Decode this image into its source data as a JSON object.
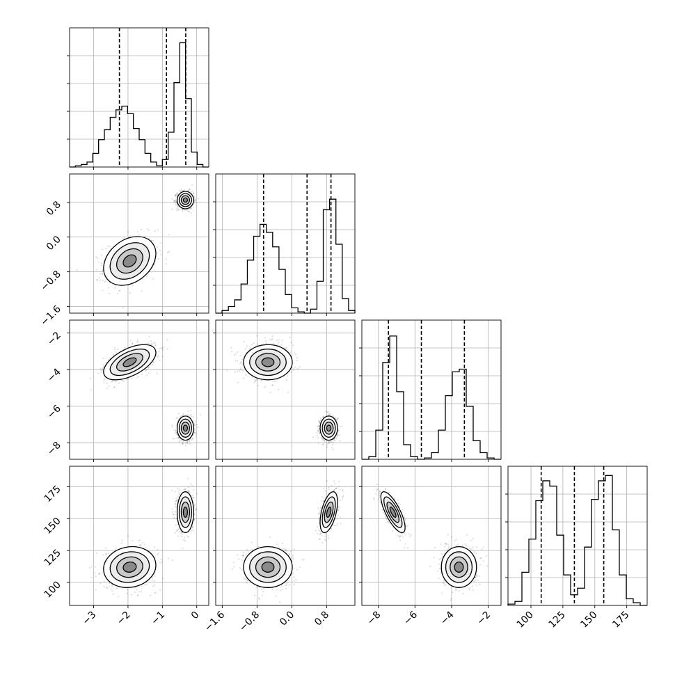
{
  "chart_data": {
    "type": "corner",
    "dimensions": 4,
    "parameters": [
      {
        "index": 0,
        "range": [
          -3.7,
          0.35
        ],
        "tick_values": [
          -3,
          -2,
          -1,
          0
        ],
        "tick_labels": [
          "−3",
          "−2",
          "−1",
          "0"
        ],
        "quantile_lines": [
          -2.25,
          -0.88,
          -0.32
        ],
        "modes": [
          {
            "center": -1.95,
            "sd": 0.38,
            "weight": 0.5
          },
          {
            "center": -0.33,
            "sd": 0.12,
            "weight": 0.5
          }
        ],
        "histogram": [
          0,
          0.01,
          0.02,
          0.04,
          0.11,
          0.22,
          0.3,
          0.4,
          0.46,
          0.49,
          0.43,
          0.31,
          0.22,
          0.11,
          0.04,
          0.01,
          0.06,
          0.28,
          0.68,
          1.0,
          0.55,
          0.12,
          0.02,
          0.0
        ],
        "hist_ylim": [
          0,
          1.12
        ]
      },
      {
        "index": 1,
        "range": [
          -1.75,
          1.45
        ],
        "tick_values": [
          -1.6,
          -0.8,
          0.0,
          0.8
        ],
        "tick_labels": [
          "−1.6",
          "−0.8",
          "0.0",
          "0.8"
        ],
        "quantile_lines": [
          -0.65,
          0.35,
          0.9
        ],
        "modes": [
          {
            "center": -0.55,
            "sd": 0.28,
            "weight": 0.5
          },
          {
            "center": 0.85,
            "sd": 0.1,
            "weight": 0.5
          }
        ],
        "histogram": [
          0,
          0.02,
          0.05,
          0.1,
          0.22,
          0.4,
          0.58,
          0.67,
          0.61,
          0.5,
          0.33,
          0.14,
          0.04,
          0.01,
          0.0,
          0.03,
          0.24,
          0.78,
          0.86,
          0.52,
          0.11,
          0.02
        ],
        "hist_ylim": [
          0,
          1.05
        ]
      },
      {
        "index": 2,
        "range": [
          -8.9,
          -1.3
        ],
        "tick_values": [
          -8,
          -6,
          -4,
          -2
        ],
        "tick_labels": [
          "−8",
          "−6",
          "−4",
          "−2"
        ],
        "quantile_lines": [
          -7.45,
          -5.65,
          -3.3
        ],
        "modes": [
          {
            "center": -7.2,
            "sd": 0.33,
            "weight": 0.5
          },
          {
            "center": -3.6,
            "sd": 0.48,
            "weight": 0.5
          }
        ],
        "histogram": [
          0,
          0.02,
          0.22,
          0.73,
          0.93,
          0.51,
          0.11,
          0.02,
          0.0,
          0.01,
          0.05,
          0.22,
          0.48,
          0.66,
          0.68,
          0.4,
          0.14,
          0.05,
          0.01,
          0.0
        ],
        "hist_ylim": [
          0,
          1.05
        ]
      },
      {
        "index": 3,
        "range": [
          82,
          191
        ],
        "tick_values": [
          100,
          125,
          150,
          175
        ],
        "tick_labels": [
          "100",
          "125",
          "150",
          "175"
        ],
        "quantile_lines": [
          108,
          134,
          157
        ],
        "modes": [
          {
            "center": 112,
            "sd": 8,
            "weight": 0.5
          },
          {
            "center": 155,
            "sd": 8,
            "weight": 0.5
          }
        ],
        "histogram": [
          0.01,
          0.03,
          0.25,
          0.5,
          0.79,
          0.94,
          0.9,
          0.53,
          0.23,
          0.08,
          0.13,
          0.44,
          0.8,
          0.94,
          0.98,
          0.57,
          0.23,
          0.05,
          0.02,
          0.0
        ],
        "hist_ylim": [
          0,
          1.05
        ]
      }
    ],
    "pairs": [
      {
        "row": 1,
        "col": 0,
        "clusters": [
          {
            "mx": -1.95,
            "my": -0.55,
            "sx": 0.38,
            "sy": 0.28,
            "rho": 0.3
          },
          {
            "mx": -0.33,
            "my": 0.85,
            "sx": 0.12,
            "sy": 0.1,
            "rho": 0.0
          }
        ]
      },
      {
        "row": 2,
        "col": 0,
        "clusters": [
          {
            "mx": -1.95,
            "my": -3.6,
            "sx": 0.38,
            "sy": 0.48,
            "rho": 0.55
          },
          {
            "mx": -0.33,
            "my": -7.2,
            "sx": 0.12,
            "sy": 0.33,
            "rho": 0.0
          }
        ]
      },
      {
        "row": 2,
        "col": 1,
        "clusters": [
          {
            "mx": -0.55,
            "my": -3.6,
            "sx": 0.28,
            "sy": 0.48,
            "rho": 0.0
          },
          {
            "mx": 0.85,
            "my": -7.2,
            "sx": 0.1,
            "sy": 0.33,
            "rho": 0.0
          }
        ]
      },
      {
        "row": 3,
        "col": 0,
        "clusters": [
          {
            "mx": -1.95,
            "my": 112,
            "sx": 0.38,
            "sy": 8,
            "rho": 0.1
          },
          {
            "mx": -0.33,
            "my": 155,
            "sx": 0.12,
            "sy": 8,
            "rho": 0.0
          }
        ]
      },
      {
        "row": 3,
        "col": 1,
        "clusters": [
          {
            "mx": -0.55,
            "my": 112,
            "sx": 0.28,
            "sy": 8,
            "rho": 0.0
          },
          {
            "mx": 0.85,
            "my": 155,
            "sx": 0.1,
            "sy": 8,
            "rho": 0.5
          }
        ]
      },
      {
        "row": 3,
        "col": 2,
        "clusters": [
          {
            "mx": -3.6,
            "my": 112,
            "sx": 0.48,
            "sy": 8,
            "rho": 0.0
          },
          {
            "mx": -7.2,
            "my": 155,
            "sx": 0.33,
            "sy": 8,
            "rho": -0.75
          }
        ]
      }
    ],
    "contour_levels_sigma": [
      0.5,
      1.0,
      1.5,
      2.0
    ],
    "grid": true,
    "colors": {
      "line": "#000000",
      "grid": "#b0b0b0",
      "scatter": "#000000",
      "fill": "#9a9a9a",
      "background": "#ffffff"
    }
  }
}
